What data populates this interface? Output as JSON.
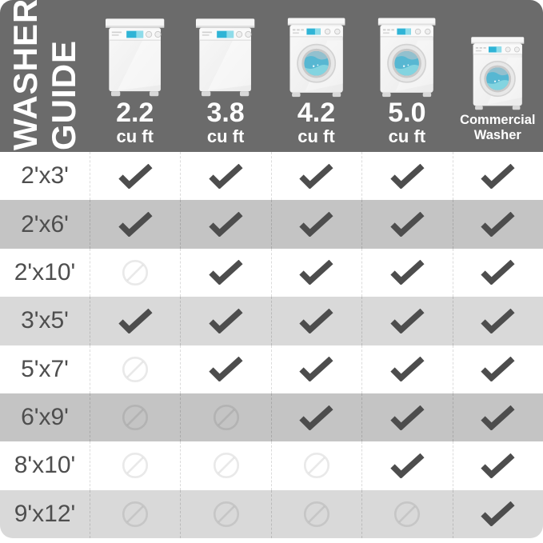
{
  "title": {
    "line1": "WASHER",
    "line2": "GUIDE"
  },
  "chart_data": {
    "type": "table",
    "title": "Washer Guide",
    "columns": [
      {
        "id": "2-2",
        "capacity": "2.2",
        "unit": "cu ft",
        "washer_icon": "top-load-washer-icon",
        "label_kind": "numeric"
      },
      {
        "id": "3-8",
        "capacity": "3.8",
        "unit": "cu ft",
        "washer_icon": "top-load-washer-icon",
        "label_kind": "numeric"
      },
      {
        "id": "4-2",
        "capacity": "4.2",
        "unit": "cu ft",
        "washer_icon": "front-load-washer-icon",
        "label_kind": "numeric"
      },
      {
        "id": "5-0",
        "capacity": "5.0",
        "unit": "cu ft",
        "washer_icon": "front-load-washer-icon",
        "label_kind": "numeric"
      },
      {
        "id": "commercial",
        "capacity": "Commercial",
        "unit": "Washer",
        "washer_icon": "front-load-washer-icon",
        "label_kind": "text"
      }
    ],
    "rows": [
      {
        "id": "2x3",
        "size": "2'x3'",
        "shade": "white",
        "fits": [
          true,
          true,
          true,
          true,
          true
        ]
      },
      {
        "id": "2x6",
        "size": "2'x6'",
        "shade": "dark",
        "fits": [
          true,
          true,
          true,
          true,
          true
        ]
      },
      {
        "id": "2x10",
        "size": "2'x10'",
        "shade": "white",
        "fits": [
          false,
          true,
          true,
          true,
          true
        ]
      },
      {
        "id": "3x5",
        "size": "3'x5'",
        "shade": "light",
        "fits": [
          true,
          true,
          true,
          true,
          true
        ]
      },
      {
        "id": "5x7",
        "size": "5'x7'",
        "shade": "white",
        "fits": [
          false,
          true,
          true,
          true,
          true
        ]
      },
      {
        "id": "6x9",
        "size": "6'x9'",
        "shade": "dark",
        "fits": [
          false,
          false,
          true,
          true,
          true
        ]
      },
      {
        "id": "8x10",
        "size": "8'x10'",
        "shade": "white",
        "fits": [
          false,
          false,
          false,
          true,
          true
        ]
      },
      {
        "id": "9x12",
        "size": "9'x12'",
        "shade": "light",
        "fits": [
          false,
          false,
          false,
          false,
          true
        ]
      }
    ],
    "cell_symbols": {
      "true": "checkmark-icon",
      "false": "prohibited-icon"
    }
  },
  "colors": {
    "header_bg": "#6b6b6b",
    "row_dark": "#c4c4c4",
    "row_light": "#d9d9d9",
    "check": "#4d4d4d",
    "prohibited": "rgba(0,0,0,0.085)",
    "washer_display_blue": "#2fb4d6",
    "washer_water_blue": "#57b7d2"
  }
}
